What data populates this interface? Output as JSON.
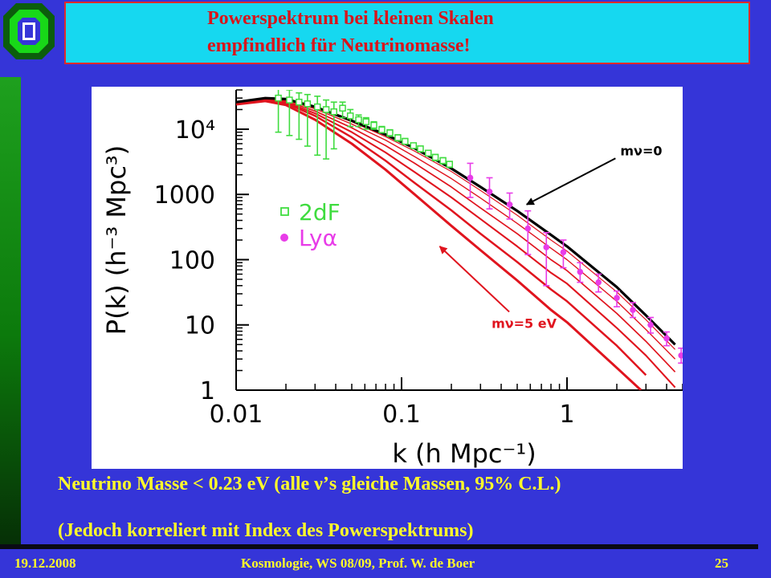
{
  "slide": {
    "title_line1": "Powerspektrum bei kleinen Skalen",
    "title_line2": "empfindlich für Neutrinomasse!",
    "text_line1": "Neutrino Masse < 0.23 eV (alle ν’s gleiche Massen, 95% C.L.)",
    "text_line2": "(Jedoch korreliert mit Index des Powerspektrums)",
    "footer_date": "19.12.2008",
    "footer_course": "Kosmologie,  WS 08/09,  Prof. W. de Boer",
    "footer_page": "25"
  },
  "colors": {
    "background": "#3535d8",
    "title_box": "#16d8f0",
    "title_text": "#d8151b",
    "body_text": "#fffb2a",
    "sidebar": "#1ea01e",
    "curve_massless": "#000000",
    "curves_massive": "#e0141e",
    "data_2df": "#3fdc3f",
    "data_lya": "#e83ce8"
  },
  "chart_data": {
    "type": "line",
    "xlabel": "k  (h  Mpc⁻¹)",
    "ylabel": "P(k)  (h⁻³  Mpc³)",
    "x_scale": "log",
    "y_scale": "log",
    "xlim": [
      0.01,
      5
    ],
    "ylim": [
      1,
      40000
    ],
    "x_ticks": [
      {
        "value": 0.01,
        "label": "0.01"
      },
      {
        "value": 0.1,
        "label": "0.1"
      },
      {
        "value": 1,
        "label": "1"
      }
    ],
    "y_ticks": [
      {
        "value": 1,
        "label": "1"
      },
      {
        "value": 10,
        "label": "10"
      },
      {
        "value": 100,
        "label": "100"
      },
      {
        "value": 1000,
        "label": "1000"
      },
      {
        "value": 10000,
        "label": "10⁴"
      }
    ],
    "legend_position": "left-middle",
    "legend": [
      {
        "label": "2dF",
        "marker": "open-square",
        "color": "#3fdc3f"
      },
      {
        "label": "Lyα",
        "marker": "filled-circle",
        "color": "#e83ce8"
      }
    ],
    "annotations": [
      {
        "label": "mν=0",
        "color": "#000000",
        "points_to_curve": 0,
        "text_at": [
          2.1,
          4000
        ],
        "arrow_to": [
          0.57,
          700
        ]
      },
      {
        "label": "mν=5 eV",
        "color": "#e0141e",
        "points_to_curve": 6,
        "text_at": [
          0.35,
          9
        ],
        "arrow_to": [
          0.17,
          160
        ]
      }
    ],
    "curves": [
      {
        "role": "massless",
        "color": "#000000",
        "width": 3.2,
        "points": [
          [
            0.01,
            26000
          ],
          [
            0.015,
            30000
          ],
          [
            0.02,
            29000
          ],
          [
            0.03,
            22000
          ],
          [
            0.05,
            13500
          ],
          [
            0.08,
            8300
          ],
          [
            0.12,
            5100
          ],
          [
            0.2,
            2500
          ],
          [
            0.3,
            1300
          ],
          [
            0.5,
            560
          ],
          [
            0.8,
            240
          ],
          [
            1,
            160
          ],
          [
            2,
            38
          ],
          [
            3,
            14
          ],
          [
            4.5,
            5
          ]
        ]
      },
      {
        "role": "massive",
        "color": "#e0141e",
        "width": 1.2,
        "points": [
          [
            0.01,
            26000
          ],
          [
            0.015,
            29800
          ],
          [
            0.02,
            28500
          ],
          [
            0.03,
            21500
          ],
          [
            0.05,
            13000
          ],
          [
            0.08,
            7700
          ],
          [
            0.12,
            4600
          ],
          [
            0.2,
            2250
          ],
          [
            0.3,
            1150
          ],
          [
            0.5,
            480
          ],
          [
            0.8,
            200
          ],
          [
            1,
            135
          ],
          [
            2,
            32
          ],
          [
            3,
            12
          ],
          [
            4.5,
            4.2
          ]
        ]
      },
      {
        "role": "massive",
        "color": "#e0141e",
        "width": 1.4,
        "points": [
          [
            0.01,
            26000
          ],
          [
            0.015,
            29500
          ],
          [
            0.02,
            28000
          ],
          [
            0.03,
            20500
          ],
          [
            0.05,
            12000
          ],
          [
            0.08,
            6800
          ],
          [
            0.12,
            3800
          ],
          [
            0.2,
            1750
          ],
          [
            0.3,
            880
          ],
          [
            0.5,
            360
          ],
          [
            0.8,
            150
          ],
          [
            1,
            100
          ],
          [
            2,
            23
          ],
          [
            3,
            8.5
          ],
          [
            4.5,
            3
          ]
        ]
      },
      {
        "role": "massive",
        "color": "#e0141e",
        "width": 1.7,
        "points": [
          [
            0.01,
            25500
          ],
          [
            0.015,
            29000
          ],
          [
            0.02,
            27000
          ],
          [
            0.03,
            19000
          ],
          [
            0.05,
            10500
          ],
          [
            0.08,
            5600
          ],
          [
            0.12,
            3000
          ],
          [
            0.2,
            1300
          ],
          [
            0.3,
            620
          ],
          [
            0.5,
            250
          ],
          [
            0.8,
            100
          ],
          [
            1,
            68
          ],
          [
            2,
            15
          ],
          [
            3,
            5.6
          ],
          [
            4.5,
            1.9
          ]
        ]
      },
      {
        "role": "massive",
        "color": "#e0141e",
        "width": 2.1,
        "points": [
          [
            0.01,
            25000
          ],
          [
            0.015,
            28500
          ],
          [
            0.02,
            26000
          ],
          [
            0.03,
            17500
          ],
          [
            0.05,
            9000
          ],
          [
            0.08,
            4400
          ],
          [
            0.12,
            2200
          ],
          [
            0.2,
            900
          ],
          [
            0.3,
            420
          ],
          [
            0.5,
            160
          ],
          [
            0.8,
            63
          ],
          [
            1,
            43
          ],
          [
            2,
            9
          ],
          [
            3,
            3.4
          ],
          [
            4.5,
            1.1
          ]
        ]
      },
      {
        "role": "massive",
        "color": "#e0141e",
        "width": 2.5,
        "points": [
          [
            0.01,
            24500
          ],
          [
            0.015,
            28000
          ],
          [
            0.02,
            25000
          ],
          [
            0.03,
            16000
          ],
          [
            0.05,
            7500
          ],
          [
            0.08,
            3300
          ],
          [
            0.12,
            1500
          ],
          [
            0.2,
            570
          ],
          [
            0.3,
            250
          ],
          [
            0.5,
            92
          ],
          [
            0.8,
            35
          ],
          [
            1,
            23
          ],
          [
            2,
            4.8
          ],
          [
            3,
            1.7
          ]
        ]
      },
      {
        "role": "massive",
        "color": "#e0141e",
        "width": 3,
        "points": [
          [
            0.01,
            24000
          ],
          [
            0.015,
            27000
          ],
          [
            0.02,
            23500
          ],
          [
            0.03,
            14000
          ],
          [
            0.05,
            6000
          ],
          [
            0.08,
            2400
          ],
          [
            0.12,
            1000
          ],
          [
            0.2,
            330
          ],
          [
            0.3,
            140
          ],
          [
            0.5,
            48
          ],
          [
            0.8,
            17
          ],
          [
            1,
            11
          ],
          [
            2,
            2.2
          ],
          [
            2.8,
            1
          ]
        ]
      }
    ],
    "series": [
      {
        "name": "2dF",
        "color": "#3fdc3f",
        "marker": "open-square",
        "points": [
          {
            "k": 0.018,
            "P": 30000,
            "lo": 9000,
            "hi": 45000
          },
          {
            "k": 0.021,
            "P": 28000,
            "lo": 8000,
            "hi": 40000
          },
          {
            "k": 0.024,
            "P": 26000,
            "lo": 7000,
            "hi": 36000
          },
          {
            "k": 0.027,
            "P": 24500,
            "lo": 5500,
            "hi": 34000
          },
          {
            "k": 0.031,
            "P": 22000,
            "lo": 4000,
            "hi": 32000
          },
          {
            "k": 0.035,
            "P": 20000,
            "lo": 3500,
            "hi": 28000
          },
          {
            "k": 0.039,
            "P": 18500,
            "lo": 5000,
            "hi": 26000
          },
          {
            "k": 0.044,
            "P": 21000,
            "lo": 15000,
            "hi": 26000
          },
          {
            "k": 0.049,
            "P": 16000,
            "lo": 11000,
            "hi": 20000
          },
          {
            "k": 0.055,
            "P": 14000,
            "lo": 11000,
            "hi": 16500
          },
          {
            "k": 0.061,
            "P": 13000,
            "lo": 10000,
            "hi": 15000
          },
          {
            "k": 0.068,
            "P": 11500,
            "lo": 10000,
            "hi": 13000
          },
          {
            "k": 0.076,
            "P": 9800,
            "lo": 8800,
            "hi": 11000
          },
          {
            "k": 0.085,
            "P": 8800,
            "lo": 7800,
            "hi": 9800
          },
          {
            "k": 0.095,
            "P": 7400,
            "lo": 6600,
            "hi": 8200
          },
          {
            "k": 0.105,
            "P": 6500,
            "lo": 5900,
            "hi": 7200
          },
          {
            "k": 0.118,
            "P": 5600,
            "lo": 5100,
            "hi": 6100
          },
          {
            "k": 0.13,
            "P": 5000,
            "lo": 4500,
            "hi": 5500
          },
          {
            "k": 0.145,
            "P": 4300,
            "lo": 3900,
            "hi": 4700
          },
          {
            "k": 0.16,
            "P": 3700,
            "lo": 3300,
            "hi": 4100
          },
          {
            "k": 0.178,
            "P": 3300,
            "lo": 2950,
            "hi": 3650
          },
          {
            "k": 0.195,
            "P": 2900,
            "lo": 2600,
            "hi": 3200
          }
        ]
      },
      {
        "name": "Lyα",
        "color": "#e83ce8",
        "marker": "filled-circle",
        "points": [
          {
            "k": 0.26,
            "P": 1800,
            "lo": 900,
            "hi": 3000
          },
          {
            "k": 0.34,
            "P": 1100,
            "lo": 600,
            "hi": 1800
          },
          {
            "k": 0.45,
            "P": 700,
            "lo": 420,
            "hi": 1050
          },
          {
            "k": 0.58,
            "P": 300,
            "lo": 120,
            "hi": 560
          },
          {
            "k": 0.75,
            "P": 155,
            "lo": 40,
            "hi": 260
          },
          {
            "k": 0.95,
            "P": 130,
            "lo": 75,
            "hi": 200
          },
          {
            "k": 1.2,
            "P": 65,
            "lo": 45,
            "hi": 90
          },
          {
            "k": 1.55,
            "P": 45,
            "lo": 32,
            "hi": 60
          },
          {
            "k": 2.0,
            "P": 26,
            "lo": 19,
            "hi": 33
          },
          {
            "k": 2.5,
            "P": 17,
            "lo": 13,
            "hi": 22
          },
          {
            "k": 3.2,
            "P": 10,
            "lo": 7.5,
            "hi": 13
          },
          {
            "k": 4.0,
            "P": 6.2,
            "lo": 4.8,
            "hi": 7.8
          },
          {
            "k": 4.9,
            "P": 3.4,
            "lo": 2.6,
            "hi": 4.4
          }
        ]
      }
    ]
  }
}
